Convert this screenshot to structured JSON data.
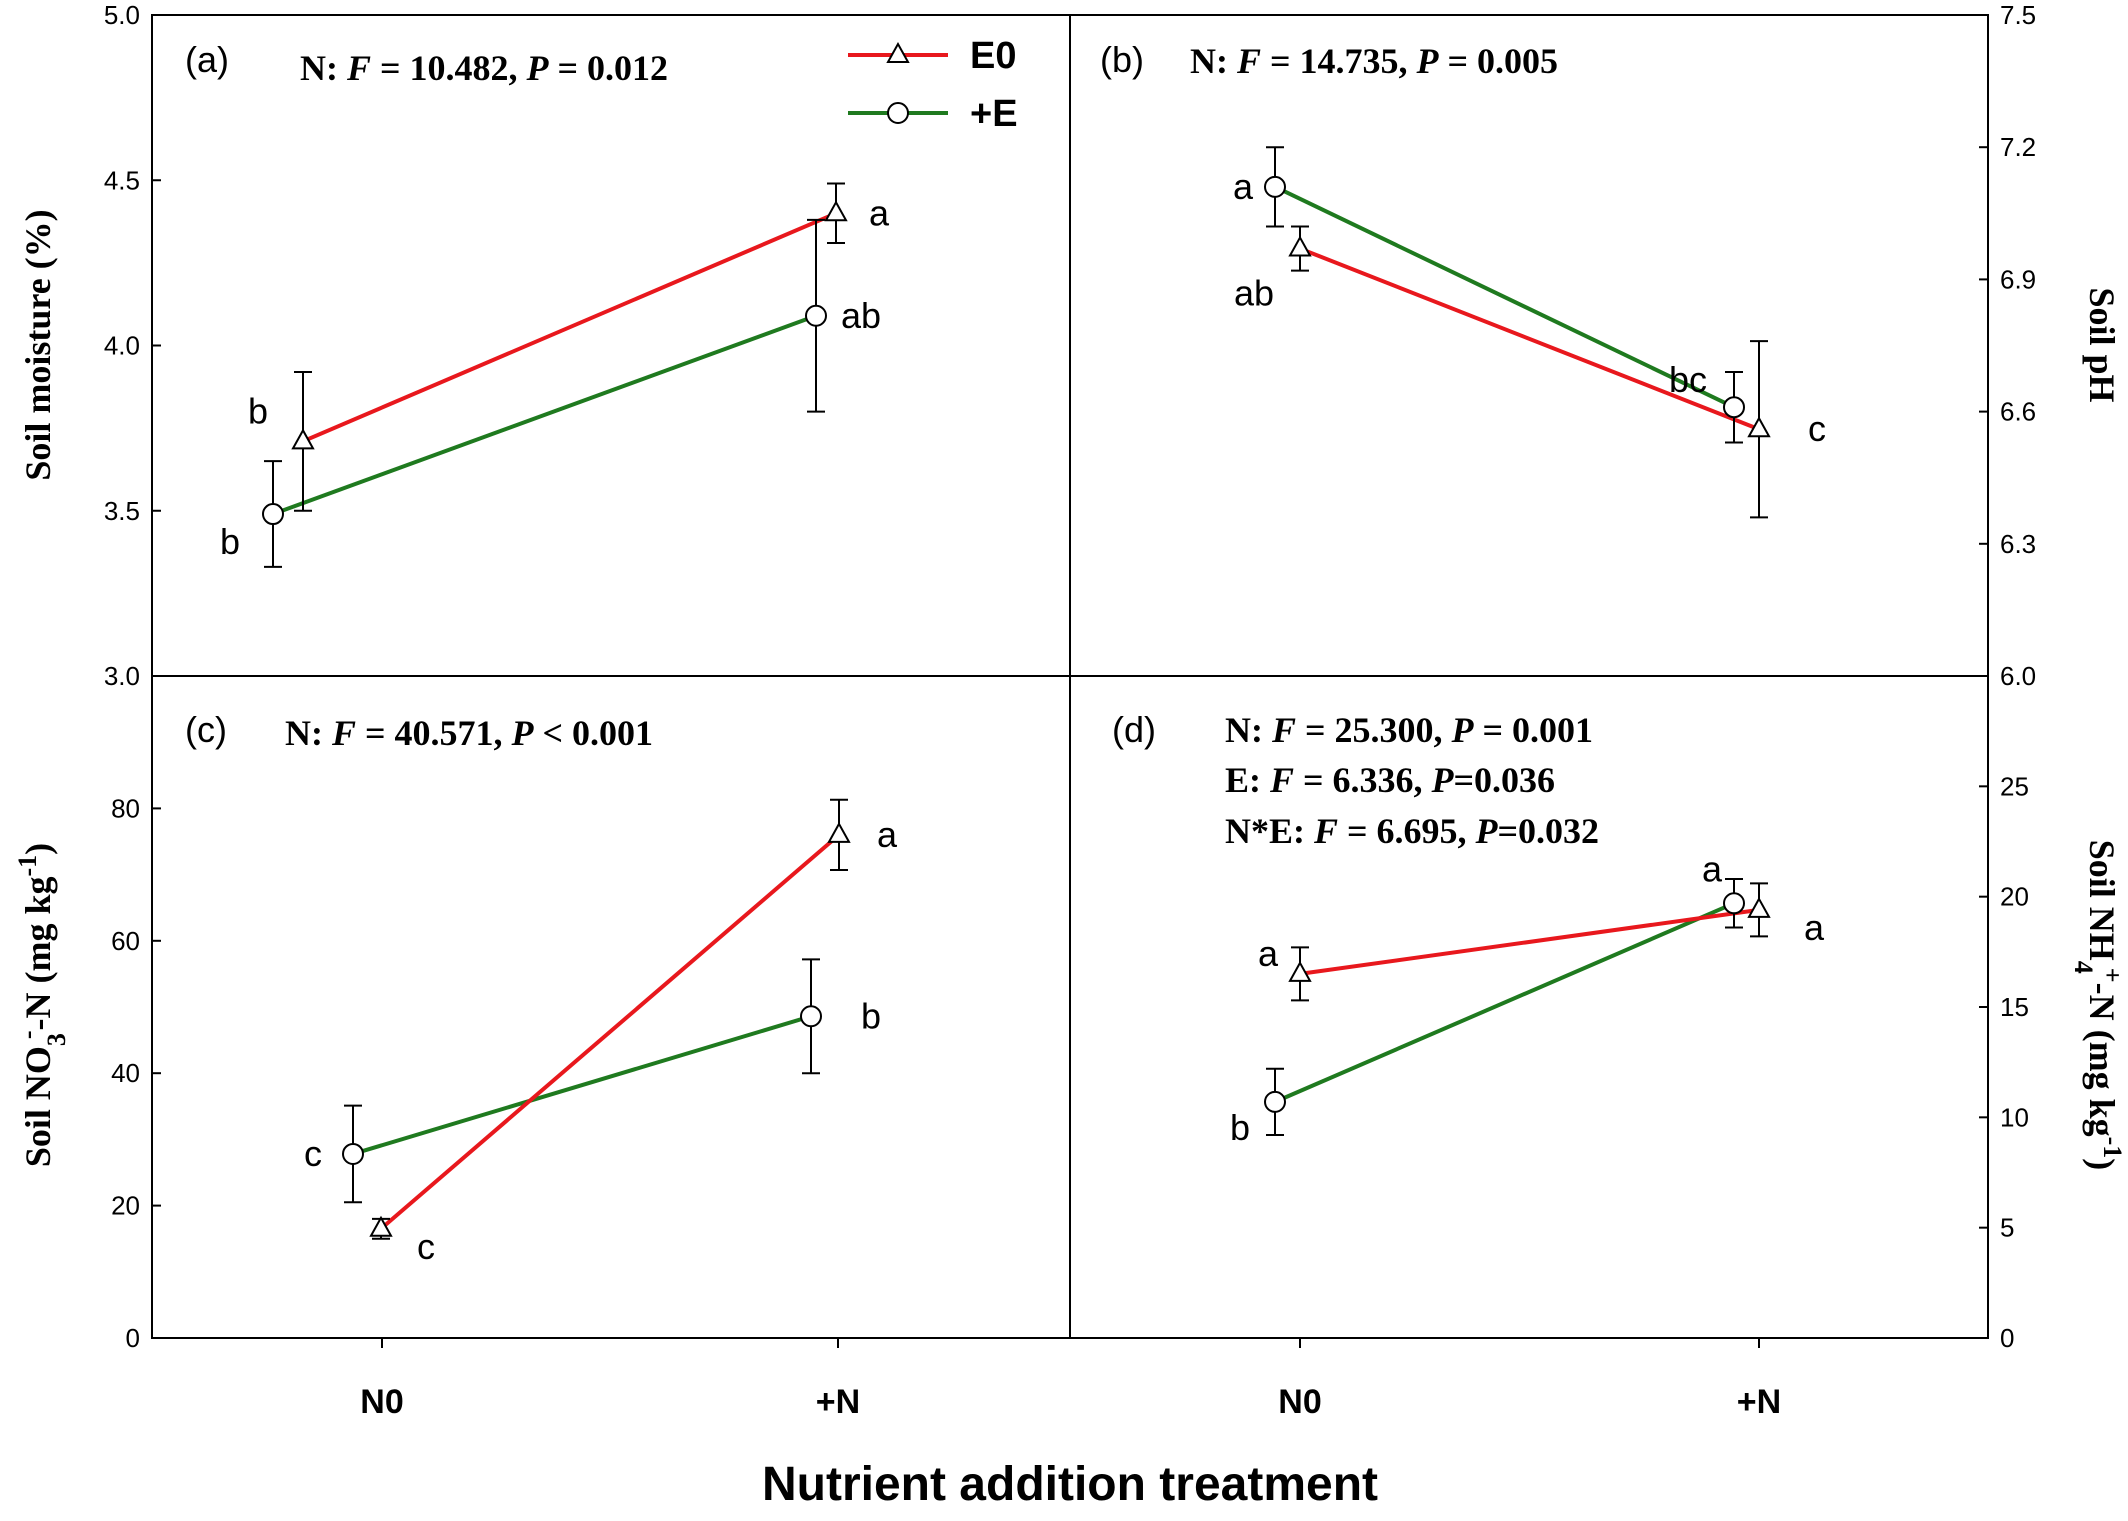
{
  "chart_data": {
    "type": "line",
    "x_label": "Nutrient addition treatment",
    "categories": [
      "N0",
      "+N"
    ],
    "legend": {
      "placement": "top-center",
      "items": [
        {
          "name": "E0",
          "marker": "triangle",
          "color": "#e8181d"
        },
        {
          "name": "+E",
          "marker": "circle",
          "color": "#1f7a1f"
        }
      ]
    },
    "panels": [
      {
        "id": "(a)",
        "ylabel": "Soil moisture (%)",
        "ylim": [
          3.0,
          5.0
        ],
        "yticks": [
          "3.0",
          "3.5",
          "4.0",
          "4.5",
          "5.0"
        ],
        "stat": [
          {
            "f": "10.482",
            "p_op": " = ",
            "p": "0.012"
          }
        ],
        "series": [
          {
            "name": "E0",
            "values": [
              3.71,
              4.4
            ],
            "err": [
              0.21,
              0.09
            ],
            "letters": [
              "b",
              "a"
            ]
          },
          {
            "name": "+E",
            "values": [
              3.49,
              4.09
            ],
            "err": [
              0.16,
              0.29
            ],
            "letters": [
              "b",
              "ab"
            ]
          }
        ]
      },
      {
        "id": "(b)",
        "ylabel": "Soil pH",
        "ylim": [
          6.0,
          7.5
        ],
        "yticks": [
          "6.0",
          "6.3",
          "6.6",
          "6.9",
          "7.2",
          "7.5"
        ],
        "stat": [
          {
            "f": "14.735",
            "p_op": " = ",
            "p": "0.005"
          }
        ],
        "series": [
          {
            "name": "E0",
            "values": [
              6.97,
              6.56
            ],
            "err": [
              0.05,
              0.2
            ],
            "letters": [
              "ab",
              "c"
            ]
          },
          {
            "name": "+E",
            "values": [
              7.11,
              6.61
            ],
            "err": [
              0.09,
              0.08
            ],
            "letters": [
              "a",
              "bc"
            ]
          }
        ]
      },
      {
        "id": "(c)",
        "ylabel_main": "Soil NO",
        "ylabel_sub": "3",
        "ylabel_sup": "-",
        "ylabel_mid": "-N (mg kg",
        "ylabel_sup2": "-1",
        "ylabel_end": ")",
        "ylim": [
          0,
          100
        ],
        "yticks": [
          "0",
          "20",
          "40",
          "60",
          "80"
        ],
        "stat": [
          {
            "f": "40.571",
            "p_op": " < ",
            "p": "0.001"
          }
        ],
        "series": [
          {
            "name": "E0",
            "values": [
              16.5,
              76.0
            ],
            "err": [
              1.5,
              5.3
            ],
            "letters": [
              "c",
              "a"
            ]
          },
          {
            "name": "+E",
            "values": [
              27.8,
              48.6
            ],
            "err": [
              7.3,
              8.6
            ],
            "letters": [
              "c",
              "b"
            ]
          }
        ]
      },
      {
        "id": "(d)",
        "ylabel_main": "Soil NH",
        "ylabel_sub": "4",
        "ylabel_sup": "+",
        "ylabel_mid": "-N (mg kg",
        "ylabel_sup2": "-1",
        "ylabel_end": ")",
        "ylim": [
          0,
          30
        ],
        "yticks": [
          "0",
          "5",
          "10",
          "15",
          "20",
          "25"
        ],
        "stat": [
          {
            "label": "N: ",
            "f": "25.300",
            "p_op": " = ",
            "p": "0.001"
          },
          {
            "label": "E: ",
            "f": "6.336",
            "p_op": "=",
            "p": "0.036"
          },
          {
            "label": "N*E: ",
            "f": "6.695",
            "p_op": "=",
            "p": "0.032"
          }
        ],
        "series": [
          {
            "name": "E0",
            "values": [
              16.5,
              19.4
            ],
            "err": [
              1.2,
              1.2
            ],
            "letters": [
              "a",
              "a"
            ]
          },
          {
            "name": "+E",
            "values": [
              10.7,
              19.7
            ],
            "err": [
              1.5,
              1.1
            ],
            "letters": [
              "b",
              "a"
            ]
          }
        ]
      }
    ]
  }
}
